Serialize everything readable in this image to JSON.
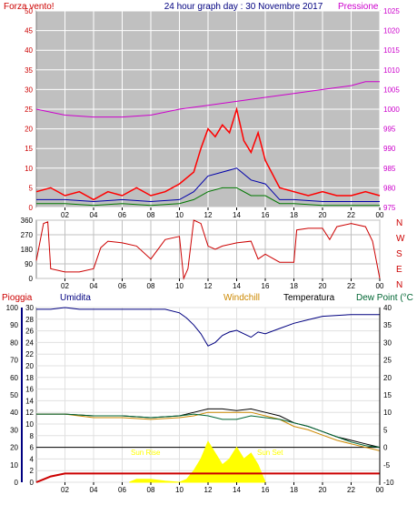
{
  "colors": {
    "wind": "#ff0000",
    "wind_avg": "#0000aa",
    "wind_min": "#007700",
    "pressure": "#cc00cc",
    "direction": "#cc0000",
    "rain": "#cc0000",
    "rain_rate": "#ffff00",
    "humidity": "#000080",
    "windchill": "#cc8800",
    "temperature": "#000000",
    "dewpoint": "#006633",
    "grid": "#ffffff"
  },
  "chart_data": [
    {
      "type": "line",
      "title": "24 hour graph day : 30 Novembre 2017",
      "left_label": "Forza vento!",
      "right_label": "Pressione",
      "ylim": [
        0,
        50
      ],
      "y2lim": [
        975,
        1025
      ],
      "yticks": [
        "0",
        "5",
        "10",
        "15",
        "20",
        "25",
        "30",
        "35",
        "40",
        "45",
        "50"
      ],
      "y2ticks": [
        "975",
        "980",
        "985",
        "990",
        "995",
        "1000",
        "1005",
        "1010",
        "1015",
        "1020",
        "1025"
      ],
      "xticks": [
        "02",
        "04",
        "06",
        "08",
        "10",
        "12",
        "14",
        "16",
        "18",
        "20",
        "22",
        "00"
      ],
      "series": [
        {
          "key": "wind_gust",
          "x": [
            0,
            1,
            2,
            3,
            4,
            5,
            6,
            7,
            8,
            9,
            10,
            11,
            11.5,
            12,
            12.5,
            13,
            13.5,
            14,
            14.5,
            15,
            15.5,
            16,
            17,
            18,
            19,
            20,
            21,
            22,
            23,
            24
          ],
          "y": [
            4,
            5,
            3,
            4,
            2,
            4,
            3,
            5,
            3,
            4,
            6,
            9,
            15,
            20,
            18,
            21,
            19,
            25,
            17,
            14,
            19,
            12,
            5,
            4,
            3,
            4,
            3,
            3,
            4,
            3
          ]
        },
        {
          "key": "wind_avg",
          "x": [
            0,
            2,
            4,
            6,
            8,
            10,
            11,
            12,
            13,
            14,
            15,
            16,
            17,
            18,
            20,
            22,
            24
          ],
          "y": [
            2,
            2,
            1.5,
            2,
            1.5,
            2,
            4,
            8,
            9,
            10,
            7,
            6,
            2,
            2,
            1.5,
            1.5,
            1.5
          ]
        },
        {
          "key": "wind_min",
          "x": [
            0,
            2,
            4,
            6,
            8,
            10,
            11,
            12,
            13,
            14,
            15,
            16,
            17,
            18,
            20,
            22,
            24
          ],
          "y": [
            1,
            1,
            0.5,
            1,
            0.5,
            1,
            2,
            4,
            5,
            5,
            3,
            3,
            1,
            1,
            0.5,
            0.5,
            0.5
          ]
        },
        {
          "key": "pressure",
          "x": [
            0,
            2,
            4,
            6,
            8,
            10,
            12,
            14,
            16,
            18,
            20,
            22,
            23,
            24
          ],
          "y": [
            1000,
            998.5,
            998,
            998,
            998.5,
            1000,
            1001,
            1002,
            1003,
            1004,
            1005,
            1006,
            1007,
            1007
          ]
        }
      ]
    },
    {
      "type": "line",
      "ylim": [
        0,
        360
      ],
      "yticks": [
        "0",
        "90",
        "180",
        "270",
        "360"
      ],
      "dir_labels": [
        "N",
        "W",
        "S",
        "E",
        "N"
      ],
      "xticks": [
        "02",
        "04",
        "06",
        "08",
        "10",
        "12",
        "14",
        "16",
        "18",
        "20",
        "22",
        "00"
      ],
      "series": [
        {
          "key": "wind_dir",
          "x": [
            0,
            0.5,
            0.8,
            1,
            2,
            3,
            4,
            4.5,
            5,
            6,
            7,
            8,
            9,
            10,
            10.3,
            10.6,
            11,
            11.5,
            12,
            12.5,
            13,
            14,
            15,
            15.5,
            16,
            17,
            18,
            18.2,
            19,
            20,
            20.5,
            21,
            22,
            23,
            23.5,
            24
          ],
          "y": [
            110,
            340,
            350,
            60,
            40,
            40,
            60,
            190,
            230,
            220,
            200,
            120,
            240,
            260,
            0,
            60,
            360,
            340,
            200,
            180,
            200,
            220,
            230,
            120,
            150,
            100,
            100,
            300,
            310,
            310,
            240,
            320,
            340,
            320,
            230,
            0
          ]
        }
      ]
    },
    {
      "type": "line",
      "left_label": "Pioggia",
      "humidity_label": "Umidita",
      "windchill_label": "Windchill",
      "temperature_label": "Temperatura",
      "dewpoint_label": "Dew Point (°C",
      "sunrise_label": "Sun Rise",
      "sunset_label": "Sun Set",
      "humidity_ticks": [
        "0",
        "10",
        "20",
        "30",
        "40",
        "50",
        "60",
        "70",
        "80",
        "90",
        "100"
      ],
      "rain_ticks": [
        "0",
        "2",
        "4",
        "6",
        "8",
        "10",
        "12",
        "14",
        "16",
        "18",
        "20",
        "22",
        "24",
        "26",
        "28",
        "30"
      ],
      "temp_ticks": [
        "-10",
        "-5",
        "0",
        "5",
        "10",
        "15",
        "20",
        "25",
        "30",
        "35",
        "40"
      ],
      "xticks": [
        "02",
        "04",
        "06",
        "08",
        "10",
        "12",
        "14",
        "16",
        "18",
        "20",
        "22",
        "00"
      ],
      "series": [
        {
          "key": "humidity",
          "x": [
            0,
            1,
            2,
            3,
            4,
            5,
            6,
            7,
            8,
            9,
            10,
            10.5,
            11,
            11.5,
            12,
            12.5,
            13,
            13.5,
            14,
            14.5,
            15,
            15.5,
            16,
            17,
            18,
            19,
            20,
            22,
            24
          ],
          "y": [
            99,
            99,
            100,
            99,
            99,
            99,
            99,
            99,
            99,
            99,
            97,
            94,
            90,
            85,
            78,
            80,
            84,
            86,
            87,
            85,
            83,
            86,
            85,
            88,
            91,
            93,
            95,
            96,
            96
          ]
        },
        {
          "key": "temperature",
          "x": [
            0,
            2,
            4,
            6,
            8,
            10,
            11,
            12,
            13,
            14,
            15,
            16,
            17,
            18,
            19,
            20,
            21,
            22,
            23,
            24
          ],
          "y": [
            9.5,
            9.5,
            9,
            9,
            8.5,
            9,
            10,
            11,
            11,
            10.5,
            11,
            10,
            9,
            7,
            6,
            4.5,
            3,
            2,
            1,
            0
          ]
        },
        {
          "key": "windchill",
          "x": [
            0,
            2,
            4,
            6,
            8,
            10,
            11,
            12,
            13,
            14,
            15,
            16,
            17,
            18,
            19,
            20,
            21,
            22,
            23,
            24
          ],
          "y": [
            9.5,
            9.5,
            8.5,
            8.5,
            8,
            8.5,
            9,
            10,
            10,
            10,
            10,
            9,
            8,
            6,
            5,
            3.5,
            2,
            1,
            0,
            -1
          ]
        },
        {
          "key": "dewpoint",
          "x": [
            0,
            2,
            4,
            6,
            8,
            10,
            11,
            12,
            13,
            14,
            15,
            16,
            17,
            18,
            19,
            20,
            21,
            22,
            23,
            24
          ],
          "y": [
            9.5,
            9.5,
            9,
            9,
            8.5,
            9,
            9.5,
            9,
            8,
            8,
            9,
            8.5,
            8,
            7,
            6,
            4.5,
            3,
            1.5,
            0.5,
            0
          ]
        },
        {
          "key": "rain_total",
          "x": [
            0,
            0.5,
            1,
            2,
            3,
            4,
            5,
            6,
            7,
            8,
            9,
            10,
            11,
            12,
            24
          ],
          "y": [
            0,
            0.5,
            1,
            1.5,
            1.5,
            1.5,
            1.5,
            1.5,
            1.5,
            1.5,
            1.5,
            1.5,
            1.5,
            1.5,
            1.5
          ]
        },
        {
          "key": "rain_rate",
          "x": [
            6.5,
            7,
            8,
            9,
            10,
            10.5,
            11,
            11.5,
            12,
            12.5,
            13,
            13.5,
            14,
            14.5,
            15,
            15.5,
            16
          ],
          "y": [
            0,
            0.5,
            0.5,
            0.2,
            0,
            0.5,
            2,
            4,
            7,
            5,
            3,
            4,
            6,
            4,
            5,
            3,
            0
          ]
        }
      ]
    }
  ]
}
